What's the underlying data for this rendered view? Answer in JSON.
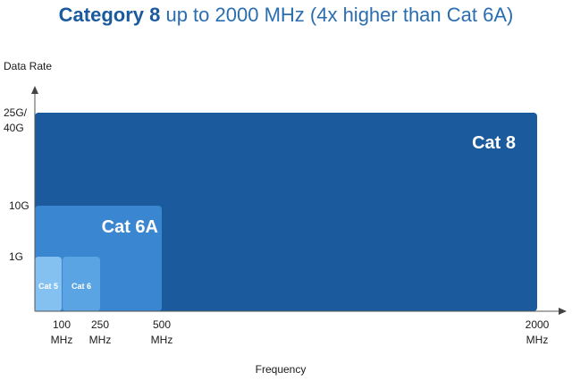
{
  "title_bold": "Category 8",
  "title_rest": " up to 2000 MHz (4x higher than Cat 6A)",
  "chart_data": {
    "type": "area",
    "title": "Category 8 up to 2000 MHz (4x higher than Cat 6A)",
    "xlabel": "Frequency",
    "ylabel": "Data Rate",
    "x_ticks": [
      {
        "value": 100,
        "l1": "100",
        "l2": "MHz"
      },
      {
        "value": 250,
        "l1": "250",
        "l2": "MHz"
      },
      {
        "value": 500,
        "l1": "500",
        "l2": "MHz"
      },
      {
        "value": 2000,
        "l1": "2000",
        "l2": "MHz"
      }
    ],
    "y_ticks": [
      {
        "key": "1G",
        "l1": "1G",
        "l2": ""
      },
      {
        "key": "10G",
        "l1": "10G",
        "l2": ""
      },
      {
        "key": "25G/40G",
        "l1": "25G/",
        "l2": "40G"
      }
    ],
    "series": [
      {
        "name": "Cat 8",
        "max_frequency_mhz": 2000,
        "max_data_rate": "25G/40G",
        "color": "#1c5a9e",
        "label_size": "large"
      },
      {
        "name": "Cat 6A",
        "max_frequency_mhz": 500,
        "max_data_rate": "10G",
        "color": "#3a86d0",
        "label_size": "medium"
      },
      {
        "name": "Cat 6",
        "max_frequency_mhz": 250,
        "max_data_rate": "1G",
        "color": "#5aa4e4",
        "label_size": "small"
      },
      {
        "name": "Cat 5",
        "max_frequency_mhz": 100,
        "max_data_rate": "1G",
        "color": "#84c0f0",
        "label_size": "small"
      }
    ],
    "grid": false,
    "legend": "none"
  }
}
